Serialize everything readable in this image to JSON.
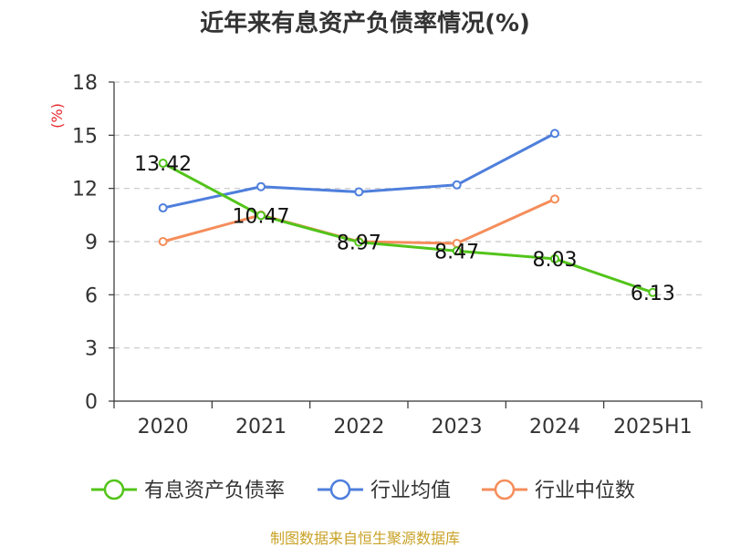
{
  "title": "近年来有息资产负债率情况(%)",
  "source": "制图数据来自恒生聚源数据库",
  "chart_data": {
    "type": "line",
    "title": "近年来有息资产负债率情况(%)",
    "ylabel": "(%)",
    "xlabel": "",
    "ylim": [
      0,
      18
    ],
    "yticks": [
      0,
      3,
      6,
      9,
      12,
      15,
      18
    ],
    "grid": true,
    "legend_position": "bottom",
    "categories": [
      "2020",
      "2021",
      "2022",
      "2023",
      "2024",
      "2025H1"
    ],
    "series": [
      {
        "name": "有息资产负债率",
        "color": "#52c41a",
        "values": [
          13.42,
          10.47,
          8.97,
          8.47,
          8.03,
          6.13
        ],
        "labels": [
          "13.42",
          "10.47",
          "8.97",
          "8.47",
          "8.03",
          "6.13"
        ]
      },
      {
        "name": "行业均值",
        "color": "#4f7fdc",
        "values": [
          10.9,
          12.1,
          11.8,
          12.2,
          15.1,
          null
        ]
      },
      {
        "name": "行业中位数",
        "color": "#f58d5b",
        "values": [
          9.0,
          10.5,
          9.0,
          8.9,
          11.4,
          null
        ]
      }
    ]
  }
}
